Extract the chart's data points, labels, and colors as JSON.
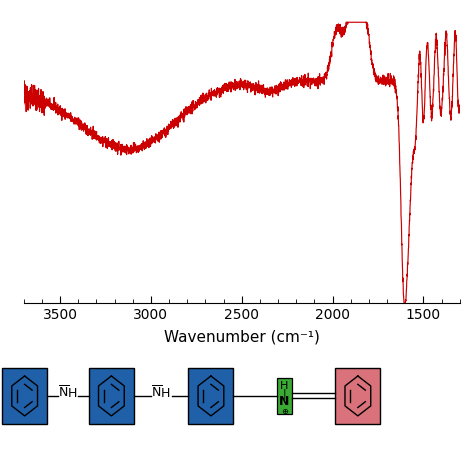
{
  "line_color": "#cc0000",
  "background_color": "#ffffff",
  "xlabel": "Wavenumber (cm⁻¹)",
  "xlabel_fontsize": 11,
  "tick_fontsize": 10,
  "xlim": [
    3700,
    1300
  ],
  "xticks": [
    3500,
    3000,
    2500,
    2000,
    1500
  ],
  "blue_color": "#2060a8",
  "green_color": "#3aaa35",
  "red_bg_color": "#d9727a",
  "line_width": 0.85,
  "fig_width": 4.74,
  "fig_height": 4.74
}
